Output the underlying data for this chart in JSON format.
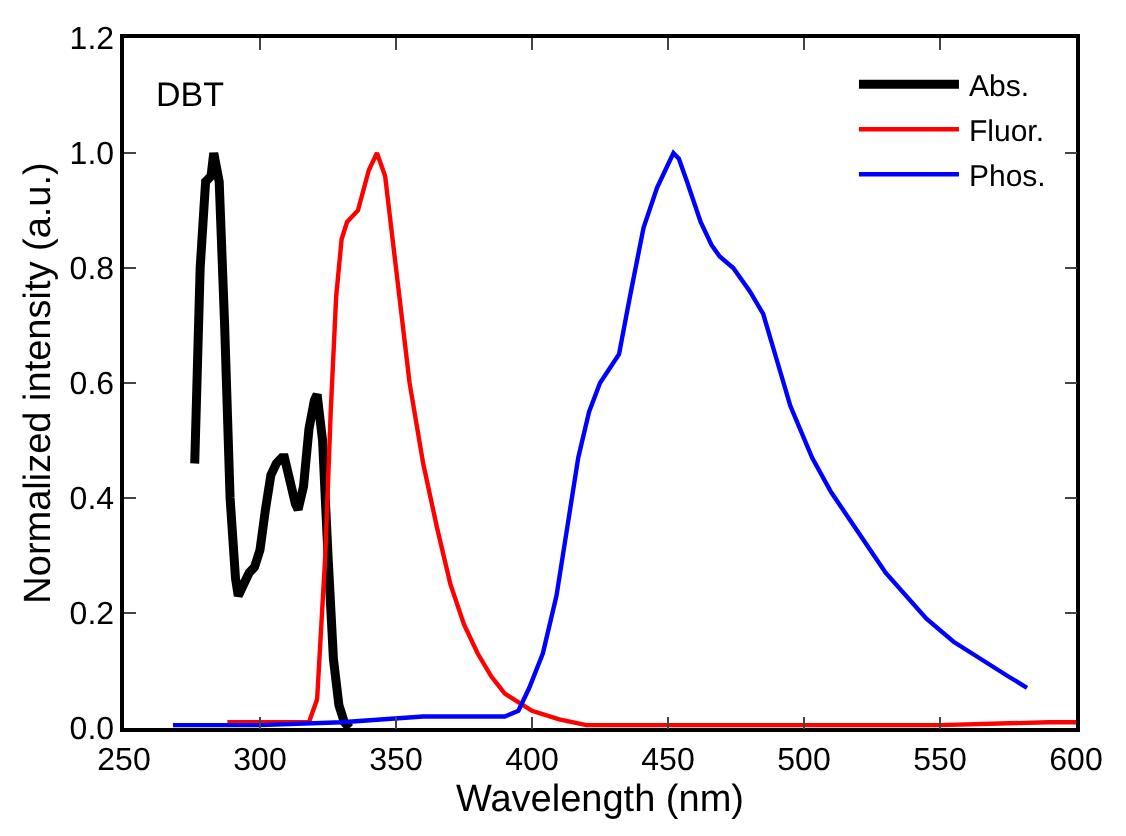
{
  "chart_data": {
    "type": "line",
    "xlabel": "Wavelength (nm)",
    "ylabel": "Normalized intensity (a.u.)",
    "annotations": [
      "DBT"
    ],
    "xlim": [
      250,
      600
    ],
    "xticks": [
      250,
      300,
      350,
      400,
      450,
      500,
      550,
      600
    ],
    "ylim": [
      0,
      1.2
    ],
    "yticks": [
      {
        "value": 0,
        "label": "0.0"
      },
      {
        "value": 0.2,
        "label": "0.2"
      },
      {
        "value": 0.4,
        "label": "0.4"
      },
      {
        "value": 0.6,
        "label": "0.6"
      },
      {
        "value": 0.8,
        "label": "0.8"
      },
      {
        "value": 1,
        "label": "1.0"
      },
      {
        "value": 1.2,
        "label": "1.2"
      }
    ],
    "grid": false,
    "legend": "top right",
    "marker": "none",
    "line_style": "solid",
    "series": [
      {
        "name": "Abs.",
        "color": "#000000",
        "x": [
          276,
          278,
          280,
          282,
          283,
          285,
          287,
          289,
          291,
          292,
          294,
          296,
          298,
          300,
          302,
          304,
          306,
          308,
          309,
          311,
          313,
          314,
          316,
          318,
          320,
          321,
          323,
          325,
          327,
          329,
          331,
          333
        ],
        "values": [
          0.46,
          0.8,
          0.95,
          0.96,
          1.0,
          0.95,
          0.7,
          0.4,
          0.26,
          0.23,
          0.25,
          0.27,
          0.28,
          0.31,
          0.38,
          0.44,
          0.46,
          0.47,
          0.47,
          0.43,
          0.39,
          0.38,
          0.42,
          0.52,
          0.57,
          0.58,
          0.5,
          0.3,
          0.12,
          0.04,
          0.01,
          0.0
        ]
      },
      {
        "name": "Fluor.",
        "color": "#ff0000",
        "x": [
          288,
          300,
          310,
          318,
          321,
          324,
          326,
          328,
          330,
          332,
          336,
          340,
          343,
          346,
          350,
          355,
          360,
          365,
          370,
          375,
          380,
          385,
          390,
          400,
          410,
          420,
          450,
          500,
          550,
          590,
          600
        ],
        "values": [
          0.01,
          0.01,
          0.01,
          0.01,
          0.05,
          0.3,
          0.55,
          0.75,
          0.85,
          0.88,
          0.9,
          0.97,
          1.0,
          0.96,
          0.8,
          0.6,
          0.46,
          0.35,
          0.25,
          0.18,
          0.13,
          0.09,
          0.06,
          0.03,
          0.015,
          0.005,
          0.005,
          0.005,
          0.005,
          0.01,
          0.01
        ]
      },
      {
        "name": "Phos.",
        "color": "#0000ff",
        "x": [
          268,
          300,
          330,
          360,
          380,
          390,
          395,
          399,
          404,
          409,
          413,
          417,
          421,
          425,
          432,
          436,
          441,
          446,
          450,
          452,
          454,
          457,
          462,
          466,
          469,
          474,
          480,
          485,
          490,
          495,
          503,
          510,
          520,
          530,
          545,
          555,
          565,
          575,
          582
        ],
        "values": [
          0.005,
          0.005,
          0.01,
          0.02,
          0.02,
          0.02,
          0.03,
          0.07,
          0.13,
          0.23,
          0.35,
          0.47,
          0.55,
          0.6,
          0.65,
          0.75,
          0.87,
          0.94,
          0.98,
          1.0,
          0.99,
          0.95,
          0.88,
          0.84,
          0.82,
          0.8,
          0.76,
          0.72,
          0.64,
          0.56,
          0.47,
          0.41,
          0.34,
          0.27,
          0.19,
          0.15,
          0.12,
          0.09,
          0.07
        ]
      }
    ]
  }
}
